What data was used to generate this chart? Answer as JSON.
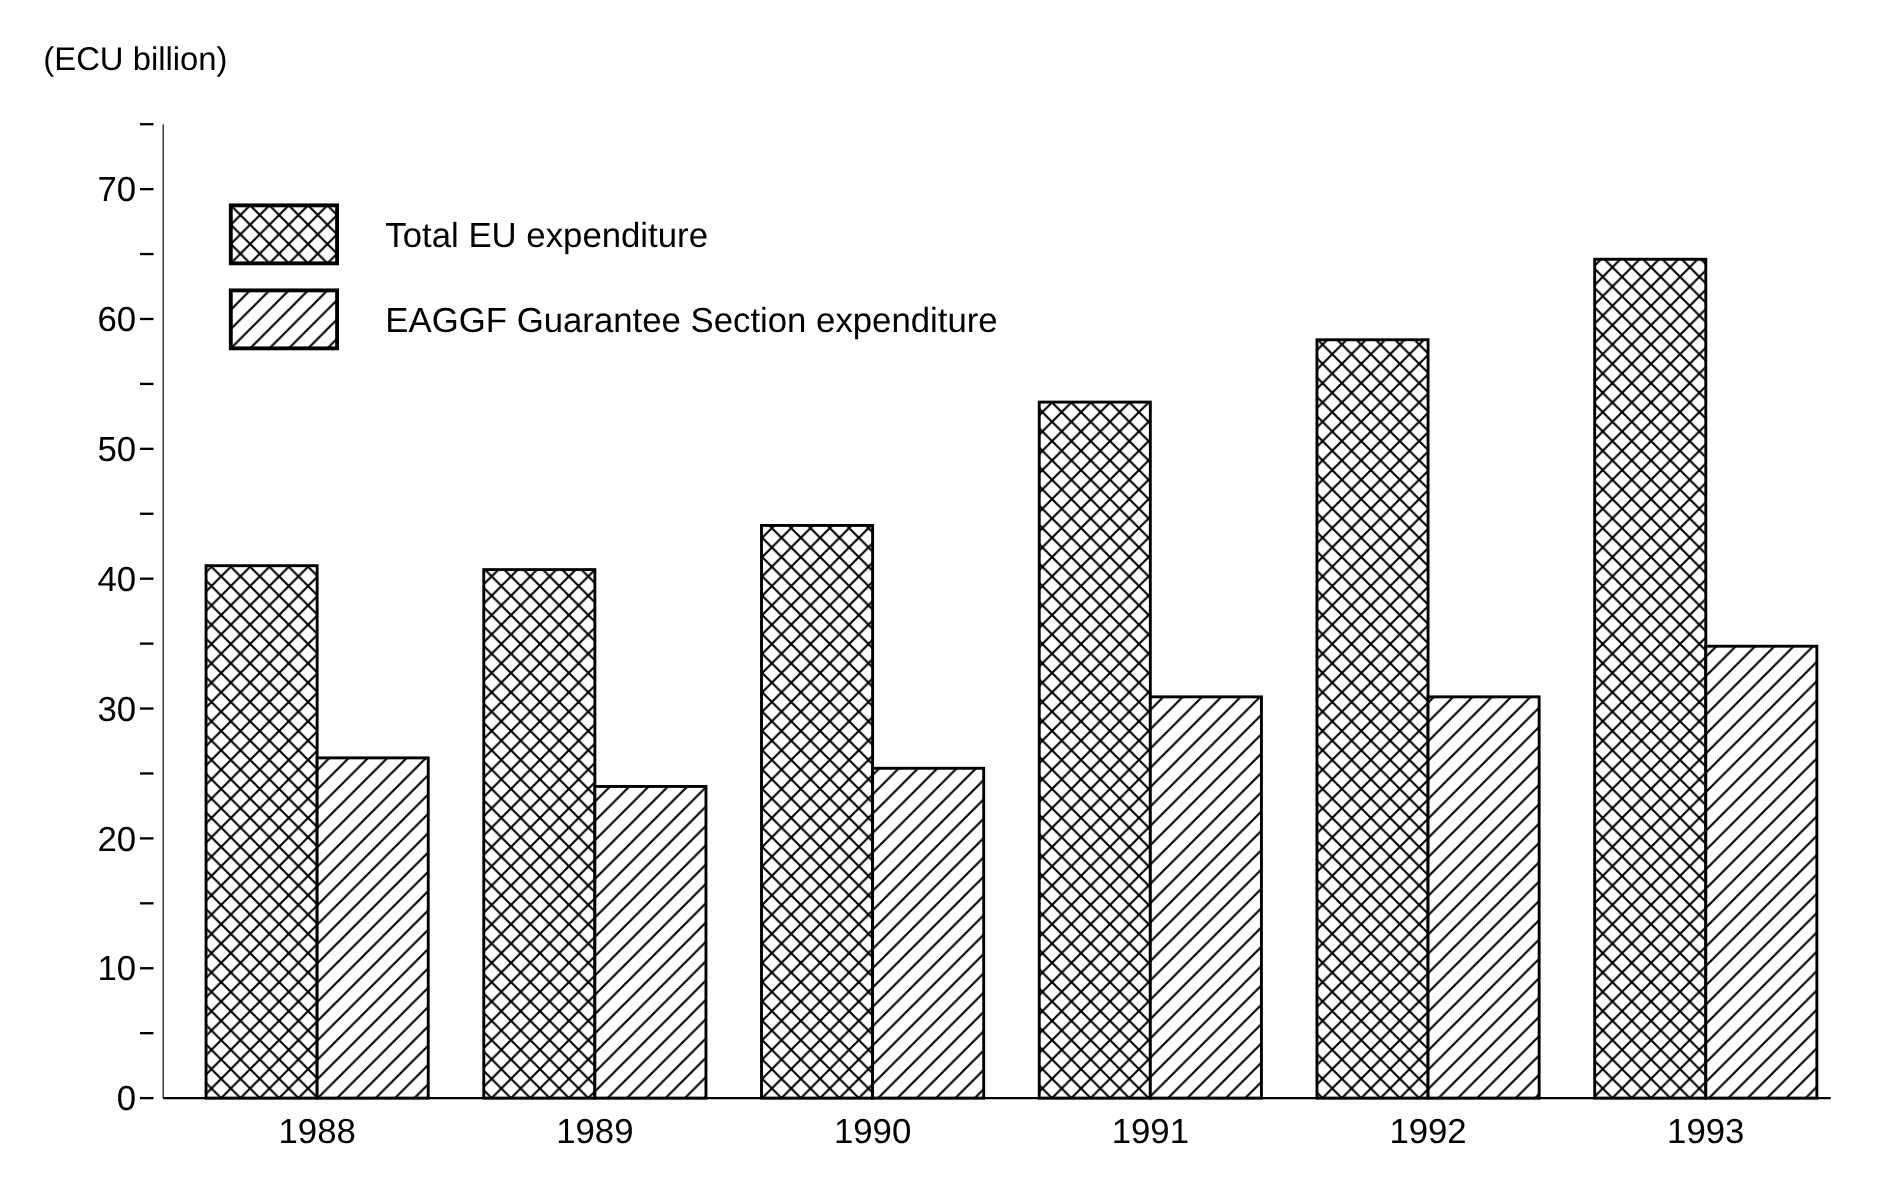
{
  "chart_data": {
    "type": "bar",
    "ylabel": "(ECU billion)",
    "categories": [
      "1988",
      "1989",
      "1990",
      "1991",
      "1992",
      "1993"
    ],
    "series": [
      {
        "name": "Total EU expenditure",
        "color": "#000000",
        "values": [
          41.0,
          40.7,
          44.1,
          53.6,
          58.4,
          64.6
        ]
      },
      {
        "name": "EAGGF Guarantee Section expenditure",
        "color": "#000000",
        "values": [
          26.2,
          24.0,
          25.4,
          30.9,
          30.9,
          34.8
        ]
      }
    ],
    "ylim": [
      0,
      75
    ],
    "yticks": [
      0,
      {
        "value": 5,
        "label": null
      },
      10,
      {
        "value": 15,
        "label": null
      },
      20,
      {
        "value": 25,
        "label": null
      },
      30,
      {
        "value": 35,
        "label": null
      },
      40,
      {
        "value": 45,
        "label": null
      },
      50,
      {
        "value": 55,
        "label": null
      },
      60,
      {
        "value": 65,
        "label": null
      },
      70,
      {
        "value": 75,
        "label": null
      }
    ],
    "grid": false,
    "legend": "top left"
  }
}
